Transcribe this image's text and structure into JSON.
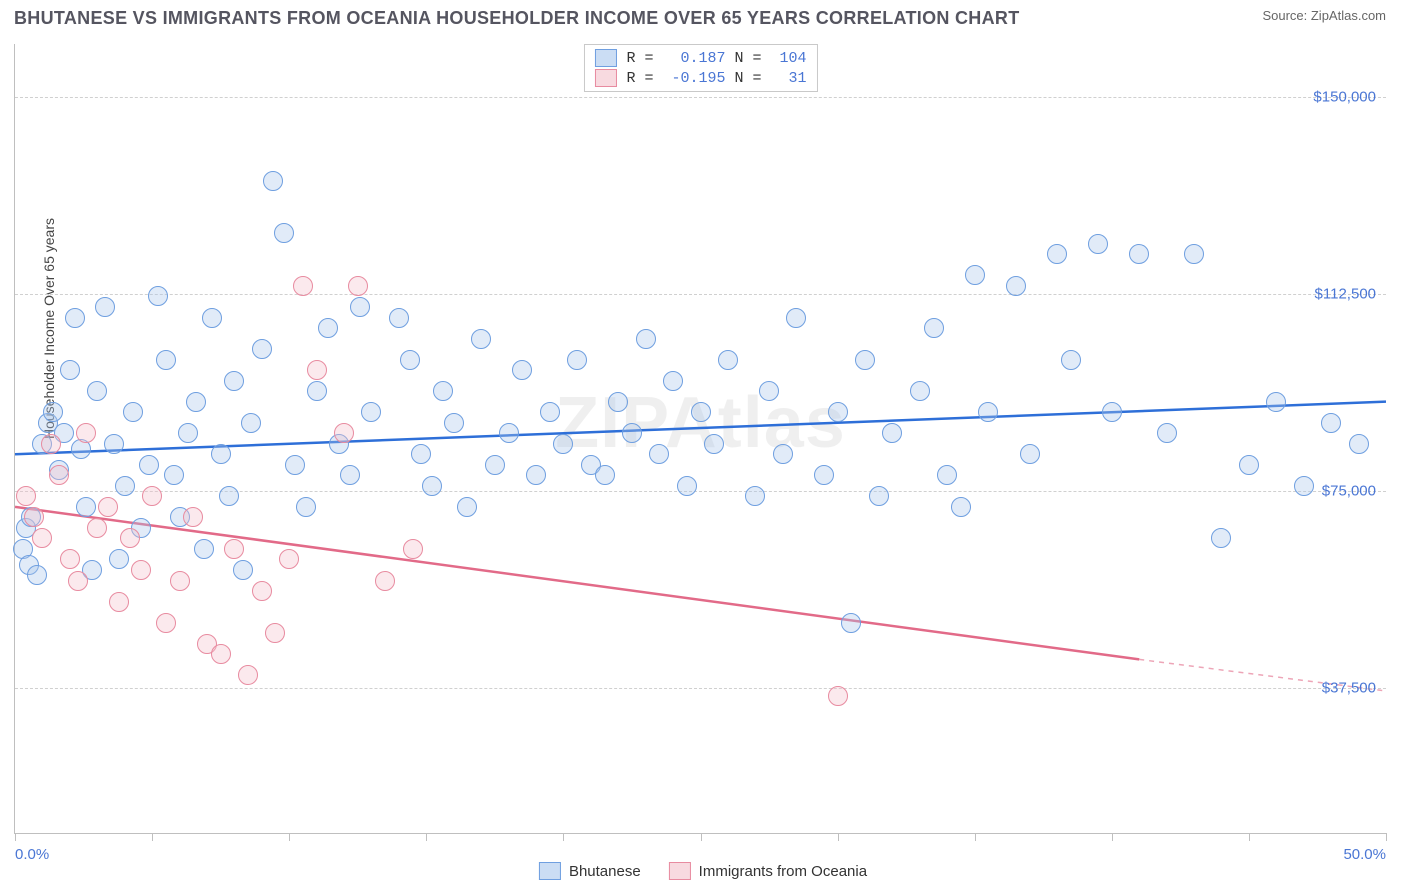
{
  "title": "BHUTANESE VS IMMIGRANTS FROM OCEANIA HOUSEHOLDER INCOME OVER 65 YEARS CORRELATION CHART",
  "source": "Source: ZipAtlas.com",
  "watermark": "ZIPAtlas",
  "ylabel": "Householder Income Over 65 years",
  "chart": {
    "type": "scatter",
    "background_color": "#ffffff",
    "grid_color": "#d0d0d0",
    "axis_color": "#bfbfbf",
    "text_color": "#4a76d4",
    "xlim": [
      0,
      50
    ],
    "ylim": [
      10000,
      160000
    ],
    "x_ticks": [
      0,
      5,
      10,
      15,
      20,
      25,
      30,
      35,
      40,
      45,
      50
    ],
    "x_tick_labels": {
      "0": "0.0%",
      "50": "50.0%"
    },
    "y_grid": [
      37500,
      75000,
      112500,
      150000
    ],
    "y_tick_labels": {
      "37500": "$37,500",
      "75000": "$75,000",
      "112500": "$112,500",
      "150000": "$150,000"
    },
    "marker_radius": 9,
    "marker_border_width": 1,
    "marker_fill_opacity": 0.35,
    "trend_line_width": 2.5,
    "series": [
      {
        "name": "Bhutanese",
        "fill_color": "#a9c6ec",
        "stroke_color": "#6f9fe0",
        "trend_color": "#2e6fd8",
        "R": "0.187",
        "N": "104",
        "trend": {
          "x0": 0,
          "y0": 82000,
          "x1": 50,
          "y1": 92000,
          "dash_from": 50
        },
        "points": [
          [
            0.3,
            64000
          ],
          [
            0.4,
            68000
          ],
          [
            0.5,
            61000
          ],
          [
            0.6,
            70000
          ],
          [
            0.8,
            59000
          ],
          [
            1.0,
            84000
          ],
          [
            1.2,
            88000
          ],
          [
            1.4,
            90000
          ],
          [
            1.6,
            79000
          ],
          [
            1.8,
            86000
          ],
          [
            2.0,
            98000
          ],
          [
            2.2,
            108000
          ],
          [
            2.4,
            83000
          ],
          [
            2.6,
            72000
          ],
          [
            2.8,
            60000
          ],
          [
            3.0,
            94000
          ],
          [
            3.3,
            110000
          ],
          [
            3.6,
            84000
          ],
          [
            3.8,
            62000
          ],
          [
            4.0,
            76000
          ],
          [
            4.3,
            90000
          ],
          [
            4.6,
            68000
          ],
          [
            4.9,
            80000
          ],
          [
            5.2,
            112000
          ],
          [
            5.5,
            100000
          ],
          [
            5.8,
            78000
          ],
          [
            6.0,
            70000
          ],
          [
            6.3,
            86000
          ],
          [
            6.6,
            92000
          ],
          [
            6.9,
            64000
          ],
          [
            7.2,
            108000
          ],
          [
            7.5,
            82000
          ],
          [
            7.8,
            74000
          ],
          [
            8.0,
            96000
          ],
          [
            8.3,
            60000
          ],
          [
            8.6,
            88000
          ],
          [
            9.0,
            102000
          ],
          [
            9.4,
            134000
          ],
          [
            9.8,
            124000
          ],
          [
            10.2,
            80000
          ],
          [
            10.6,
            72000
          ],
          [
            11.0,
            94000
          ],
          [
            11.4,
            106000
          ],
          [
            11.8,
            84000
          ],
          [
            12.2,
            78000
          ],
          [
            12.6,
            110000
          ],
          [
            13.0,
            90000
          ],
          [
            14.0,
            108000
          ],
          [
            14.4,
            100000
          ],
          [
            14.8,
            82000
          ],
          [
            15.2,
            76000
          ],
          [
            15.6,
            94000
          ],
          [
            16.0,
            88000
          ],
          [
            16.5,
            72000
          ],
          [
            17.0,
            104000
          ],
          [
            17.5,
            80000
          ],
          [
            18.0,
            86000
          ],
          [
            18.5,
            98000
          ],
          [
            19.0,
            78000
          ],
          [
            19.5,
            90000
          ],
          [
            20.0,
            84000
          ],
          [
            20.5,
            100000
          ],
          [
            21.0,
            80000
          ],
          [
            21.5,
            78000
          ],
          [
            22.0,
            92000
          ],
          [
            22.5,
            86000
          ],
          [
            23.0,
            104000
          ],
          [
            23.5,
            82000
          ],
          [
            24.0,
            96000
          ],
          [
            24.5,
            76000
          ],
          [
            25.0,
            90000
          ],
          [
            25.5,
            84000
          ],
          [
            26.0,
            100000
          ],
          [
            27.0,
            74000
          ],
          [
            27.5,
            94000
          ],
          [
            28.0,
            82000
          ],
          [
            28.5,
            108000
          ],
          [
            29.5,
            78000
          ],
          [
            30.0,
            90000
          ],
          [
            30.5,
            50000
          ],
          [
            31.0,
            100000
          ],
          [
            31.5,
            74000
          ],
          [
            32.0,
            86000
          ],
          [
            33.0,
            94000
          ],
          [
            33.5,
            106000
          ],
          [
            34.0,
            78000
          ],
          [
            34.5,
            72000
          ],
          [
            35.0,
            116000
          ],
          [
            35.5,
            90000
          ],
          [
            36.5,
            114000
          ],
          [
            37.0,
            82000
          ],
          [
            38.0,
            120000
          ],
          [
            38.5,
            100000
          ],
          [
            39.5,
            122000
          ],
          [
            40.0,
            90000
          ],
          [
            41.0,
            120000
          ],
          [
            42.0,
            86000
          ],
          [
            43.0,
            120000
          ],
          [
            44.0,
            66000
          ],
          [
            45.0,
            80000
          ],
          [
            46.0,
            92000
          ],
          [
            47.0,
            76000
          ],
          [
            48.0,
            88000
          ],
          [
            49.0,
            84000
          ]
        ]
      },
      {
        "name": "Immigrants from Oceania",
        "fill_color": "#f4c1cb",
        "stroke_color": "#e88ba0",
        "trend_color": "#e26a88",
        "R": "-0.195",
        "N": "31",
        "trend": {
          "x0": 0,
          "y0": 72000,
          "x1": 41,
          "y1": 43000,
          "dash_from": 41,
          "x2": 50,
          "y2": 37000
        },
        "points": [
          [
            0.4,
            74000
          ],
          [
            0.7,
            70000
          ],
          [
            1.0,
            66000
          ],
          [
            1.3,
            84000
          ],
          [
            1.6,
            78000
          ],
          [
            2.0,
            62000
          ],
          [
            2.3,
            58000
          ],
          [
            2.6,
            86000
          ],
          [
            3.0,
            68000
          ],
          [
            3.4,
            72000
          ],
          [
            3.8,
            54000
          ],
          [
            4.2,
            66000
          ],
          [
            4.6,
            60000
          ],
          [
            5.0,
            74000
          ],
          [
            5.5,
            50000
          ],
          [
            6.0,
            58000
          ],
          [
            6.5,
            70000
          ],
          [
            7.0,
            46000
          ],
          [
            7.5,
            44000
          ],
          [
            8.0,
            64000
          ],
          [
            8.5,
            40000
          ],
          [
            9.0,
            56000
          ],
          [
            9.5,
            48000
          ],
          [
            10.0,
            62000
          ],
          [
            10.5,
            114000
          ],
          [
            11.0,
            98000
          ],
          [
            12.0,
            86000
          ],
          [
            12.5,
            114000
          ],
          [
            13.5,
            58000
          ],
          [
            14.5,
            64000
          ],
          [
            30.0,
            36000
          ]
        ]
      }
    ]
  },
  "legend_top": {
    "r_label": "R =",
    "n_label": "N ="
  },
  "legend_bottom": [
    {
      "name": "Bhutanese",
      "fill": "#a9c6ec",
      "stroke": "#6f9fe0"
    },
    {
      "name": "Immigrants from Oceania",
      "fill": "#f4c1cb",
      "stroke": "#e88ba0"
    }
  ]
}
